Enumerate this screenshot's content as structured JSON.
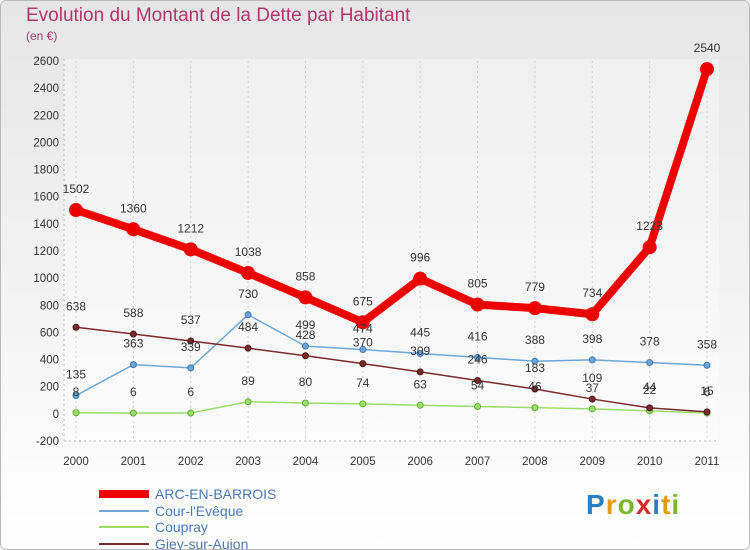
{
  "chart_data": {
    "type": "line",
    "title": "Evolution du Montant de la Dette par Habitant",
    "subtitle": "(en €)",
    "categories": [
      "2000",
      "2001",
      "2002",
      "2003",
      "2004",
      "2005",
      "2006",
      "2007",
      "2008",
      "2009",
      "2010",
      "2011"
    ],
    "ylim": [
      -200,
      2600
    ],
    "yticks": [
      -200,
      0,
      200,
      400,
      600,
      800,
      1000,
      1200,
      1400,
      1600,
      1800,
      2000,
      2200,
      2400,
      2600
    ],
    "grid": "vertical-dashed",
    "legend_position": "bottom-left",
    "series": [
      {
        "name": "ARC-EN-BARROIS",
        "color": "#ee0000",
        "values": [
          1502,
          1360,
          1212,
          1038,
          858,
          675,
          996,
          805,
          779,
          734,
          1228,
          2540
        ]
      },
      {
        "name": "Cour-l'Evêque",
        "color": "#6ea6d7",
        "values": [
          135,
          363,
          339,
          730,
          499,
          474,
          445,
          416,
          388,
          398,
          378,
          358
        ]
      },
      {
        "name": "Coupray",
        "color": "#9bdc6b",
        "values": [
          8,
          6,
          6,
          89,
          80,
          74,
          63,
          54,
          46,
          37,
          22,
          6
        ]
      },
      {
        "name": "Giey-sur-Aujon",
        "color": "#7a2a2a",
        "values": [
          638,
          588,
          537,
          484,
          428,
          370,
          309,
          246,
          183,
          109,
          44,
          15
        ]
      }
    ]
  },
  "logo": {
    "p": "P",
    "r": "r",
    "o": "o",
    "x": "x",
    "i": "i",
    "t": "t",
    "i2": "i"
  }
}
